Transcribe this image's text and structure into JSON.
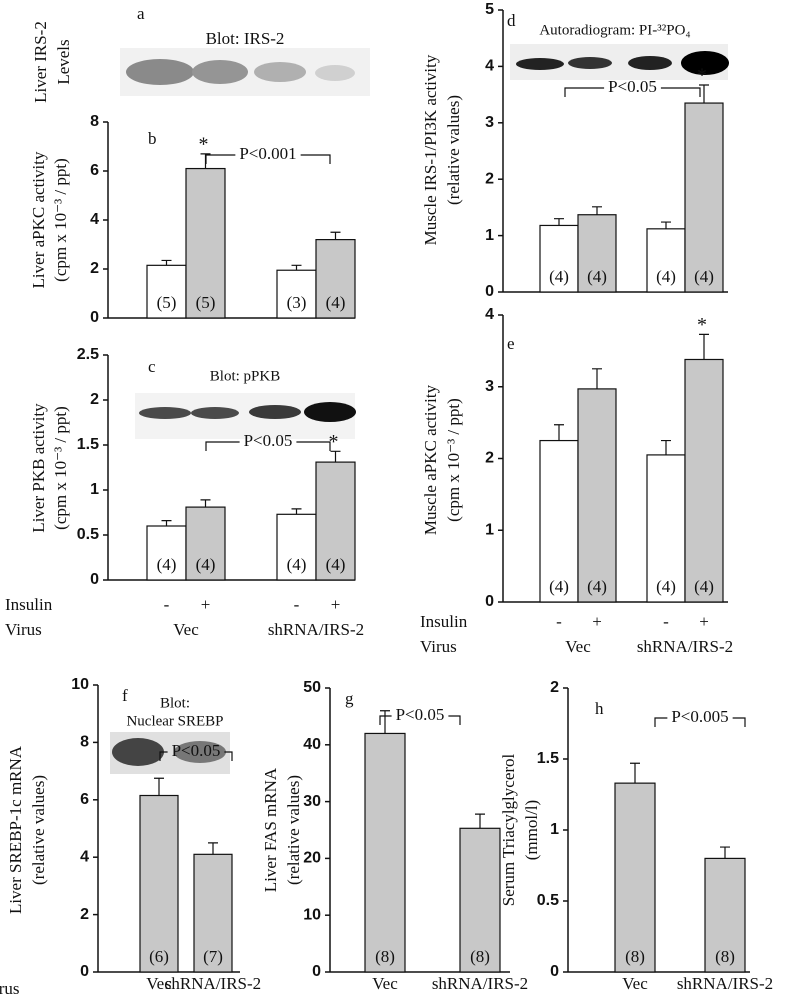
{
  "chart_data": [
    {
      "type": "blot",
      "label": "a",
      "title": "Blot: IRS-2",
      "ylabel": [
        "Liver IRS-2",
        "Levels"
      ]
    },
    {
      "type": "bar",
      "label": "b",
      "ylabel": [
        "Liver aPKC activity",
        "(cpm x 10⁻³ / ppt)"
      ],
      "ylim": [
        0,
        8
      ],
      "yticks": [
        0,
        2,
        4,
        6,
        8
      ],
      "series": [
        {
          "color": "#ffffff",
          "values": [
            2.15,
            1.95
          ],
          "errors": [
            0.2,
            0.2
          ],
          "n_labels": [
            "(5)",
            "(3)"
          ]
        },
        {
          "color": "#c8c8c8",
          "values": [
            6.1,
            3.2
          ],
          "errors": [
            0.6,
            0.3
          ],
          "n_labels": [
            "(5)",
            "(4)"
          ]
        }
      ],
      "p_label": "P<0.001",
      "star": "*"
    },
    {
      "type": "bar",
      "label": "c",
      "inset": [
        "Blot: pPKB"
      ],
      "ylabel": [
        "Liver PKB activity",
        "(cpm x 10⁻³ / ppt)"
      ],
      "ylim": [
        0,
        2.5
      ],
      "yticks": [
        0,
        0.5,
        1,
        1.5,
        2,
        2.5
      ],
      "categories": [
        "Vec",
        "shRNA/IRS-2"
      ],
      "row_labels": [
        "Insulin",
        "Virus"
      ],
      "series": [
        {
          "name": "-",
          "color": "#ffffff",
          "values": [
            0.6,
            0.73
          ],
          "errors": [
            0.06,
            0.06
          ],
          "n_labels": [
            "(4)",
            "(4)"
          ]
        },
        {
          "name": "+",
          "color": "#c8c8c8",
          "values": [
            0.81,
            1.31
          ],
          "errors": [
            0.08,
            0.12
          ],
          "n_labels": [
            "(4)",
            "(4)"
          ]
        }
      ],
      "p_label": "P<0.05",
      "star": "*"
    },
    {
      "type": "bar",
      "label": "d",
      "inset": [
        "Autoradiogram: PI-³²PO₄"
      ],
      "ylabel": [
        "Muscle IRS-1/PI3K activity",
        "(relative values)"
      ],
      "ylim": [
        0,
        5
      ],
      "yticks": [
        0,
        1,
        2,
        3,
        4,
        5
      ],
      "series": [
        {
          "color": "#ffffff",
          "values": [
            1.18,
            1.12
          ],
          "errors": [
            0.12,
            0.12
          ],
          "n_labels": [
            "(4)",
            "(4)"
          ]
        },
        {
          "color": "#c8c8c8",
          "values": [
            1.37,
            3.35
          ],
          "errors": [
            0.14,
            0.32
          ],
          "n_labels": [
            "(4)",
            "(4)"
          ]
        }
      ],
      "p_label": "P<0.05",
      "star": "*"
    },
    {
      "type": "bar",
      "label": "e",
      "ylabel": [
        "Muscle aPKC activity",
        "(cpm x 10⁻³ / ppt)"
      ],
      "ylim": [
        0,
        4
      ],
      "yticks": [
        0,
        1,
        2,
        3,
        4
      ],
      "categories": [
        "Vec",
        "shRNA/IRS-2"
      ],
      "row_labels": [
        "Insulin",
        "Virus"
      ],
      "series": [
        {
          "name": "-",
          "color": "#ffffff",
          "values": [
            2.25,
            2.05
          ],
          "errors": [
            0.22,
            0.2
          ],
          "n_labels": [
            "(4)",
            "(4)"
          ]
        },
        {
          "name": "+",
          "color": "#c8c8c8",
          "values": [
            2.97,
            3.38
          ],
          "errors": [
            0.28,
            0.35
          ],
          "n_labels": [
            "(4)",
            "(4)"
          ]
        }
      ],
      "star": "*"
    },
    {
      "type": "bar",
      "label": "f",
      "inset": [
        "Blot:",
        "Nuclear SREBP"
      ],
      "ylabel": [
        "Liver SREBP-1c mRNA",
        "(relative values)"
      ],
      "ylim": [
        0,
        10
      ],
      "yticks": [
        0,
        2,
        4,
        6,
        8,
        10
      ],
      "categories": [
        "Vec",
        "shRNA/IRS-2"
      ],
      "row_labels": [
        "irus"
      ],
      "series": [
        {
          "color": "#c8c8c8",
          "values": [
            6.15,
            4.1
          ],
          "errors": [
            0.6,
            0.4
          ],
          "n_labels": [
            "(6)",
            "(7)"
          ]
        }
      ],
      "p_label": "P<0.05"
    },
    {
      "type": "bar",
      "label": "g",
      "ylabel": [
        "Liver FAS mRNA",
        "(relative values)"
      ],
      "ylim": [
        0,
        50
      ],
      "yticks": [
        0,
        10,
        20,
        30,
        40,
        50
      ],
      "categories": [
        "Vec",
        "shRNA/IRS-2"
      ],
      "series": [
        {
          "color": "#c8c8c8",
          "values": [
            42,
            25.3
          ],
          "errors": [
            4,
            2.5
          ],
          "n_labels": [
            "(8)",
            "(8)"
          ]
        }
      ],
      "p_label": "P<0.05"
    },
    {
      "type": "bar",
      "label": "h",
      "ylabel": [
        "Serum Triacylglycerol",
        "(mmol/l)"
      ],
      "ylim": [
        0,
        2
      ],
      "yticks": [
        0,
        0.5,
        1,
        1.5,
        2
      ],
      "categories": [
        "Vec",
        "shRNA/IRS-2"
      ],
      "series": [
        {
          "color": "#c8c8c8",
          "values": [
            1.33,
            0.8
          ],
          "errors": [
            0.14,
            0.08
          ],
          "n_labels": [
            "(8)",
            "(8)"
          ]
        }
      ],
      "p_label": "P<0.005"
    }
  ]
}
